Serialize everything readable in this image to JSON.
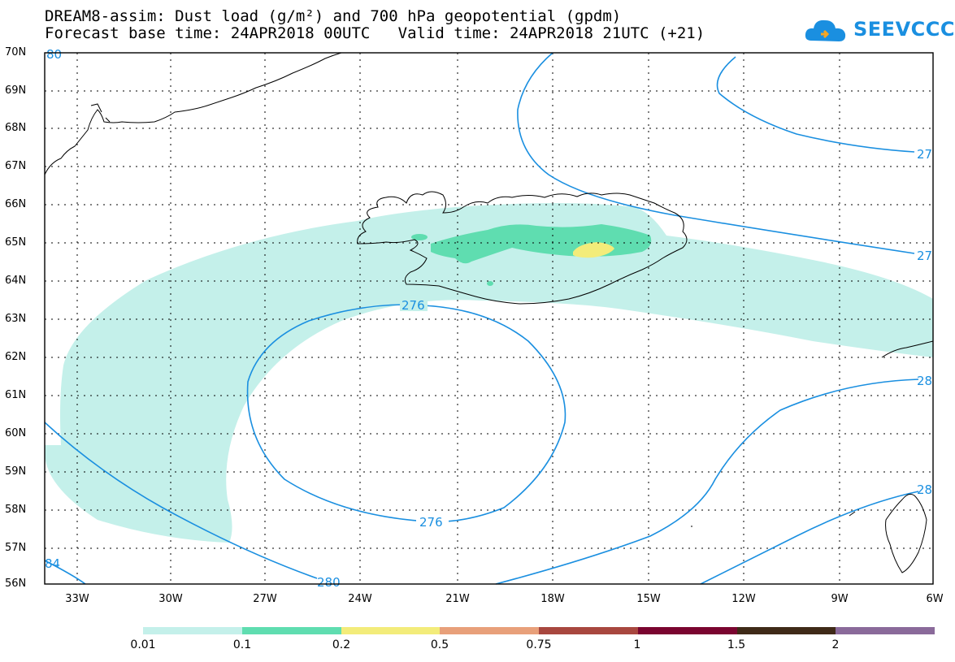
{
  "header": {
    "title_line1": "DREAM8-assim: Dust load (g/m²) and 700 hPa geopotential (gpdm)",
    "title_line2": "Forecast base time: 24APR2018 00UTC   Valid time: 24APR2018 21UTC (+21)"
  },
  "logo": {
    "text": "SEEVCCC",
    "icon": "cloud-icon",
    "color": "#1a8fe0"
  },
  "axes": {
    "lat_labels": [
      "70N",
      "69N",
      "68N",
      "67N",
      "66N",
      "65N",
      "64N",
      "63N",
      "62N",
      "61N",
      "60N",
      "59N",
      "58N",
      "57N",
      "56N"
    ],
    "lon_labels": [
      "33W",
      "30W",
      "27W",
      "24W",
      "21W",
      "18W",
      "15W",
      "12W",
      "9W",
      "6W"
    ],
    "lat_range": [
      56,
      70
    ],
    "lon_range": [
      -34.5,
      -6
    ]
  },
  "contours": {
    "labels": [
      "276",
      "276",
      "280",
      "27",
      "27",
      "28",
      "28",
      "84",
      "80"
    ],
    "color": "#1a8fe0"
  },
  "colorbar": {
    "labels": [
      "0.01",
      "0.1",
      "0.2",
      "0.5",
      "0.75",
      "1",
      "1.5",
      "2"
    ],
    "colors": [
      "#c4f0ea",
      "#5fddb0",
      "#f3ec7a",
      "#e8a07a",
      "#a8473f",
      "#7a0530",
      "#3f2a18",
      "#8a6a9a"
    ]
  }
}
